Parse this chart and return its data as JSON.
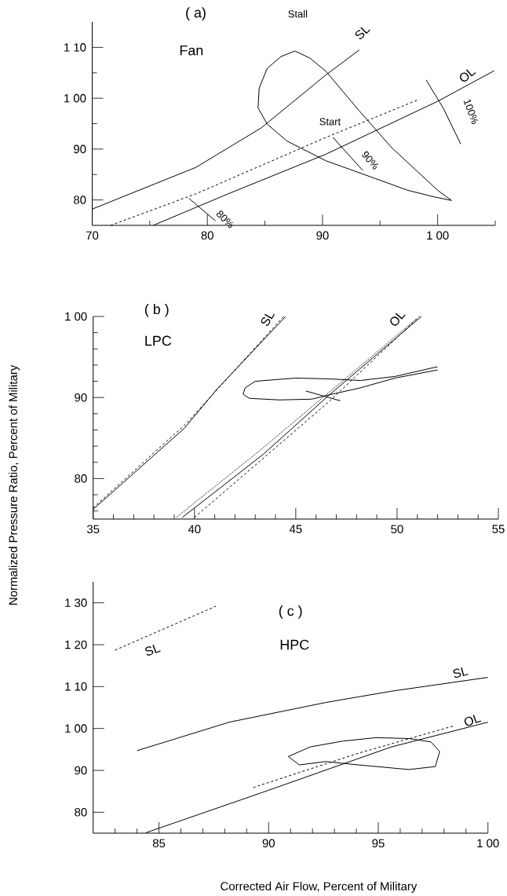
{
  "chart_data": [
    {
      "type": "line",
      "title": "( a)",
      "subtitle": "Fan",
      "xlim": [
        70,
        105
      ],
      "ylim": [
        75,
        115
      ],
      "xticks": [
        70,
        80,
        90,
        {
          "value": 100,
          "label": "1 00"
        },
        {
          "value": 75,
          "label": null
        },
        {
          "value": 85,
          "label": null
        },
        {
          "value": 95,
          "label": null
        },
        {
          "value": 105,
          "label": null
        }
      ],
      "yticks": [
        80,
        90,
        {
          "value": 100,
          "label": "1 00"
        },
        {
          "value": 110,
          "label": "1 10"
        },
        {
          "value": 85,
          "label": null
        },
        {
          "value": 95,
          "label": null
        },
        {
          "value": 105,
          "label": null
        }
      ],
      "series": [
        {
          "color": "#000000",
          "line_style": "solid",
          "x": [
            70,
            79,
            84.7,
            90.3,
            93.2
          ],
          "values": [
            78.2,
            86.4,
            94.2,
            104.6,
            109.5
          ]
        },
        {
          "color": "#000000",
          "line_style": "dashed",
          "x": [
            71.6,
            79,
            90.3,
            98.3
          ],
          "values": [
            75,
            81.2,
            92.3,
            99.7
          ]
        },
        {
          "color": "#000000",
          "line_style": "solid",
          "x": [
            75.3,
            81.8,
            90.3,
            100,
            104.9
          ],
          "values": [
            75,
            81.2,
            89.0,
            99.4,
            105.4
          ]
        },
        {
          "color": "#000000",
          "line_style": "solid",
          "x": [
            78.4,
            80.7
          ],
          "values": [
            80.3,
            75.9
          ]
        },
        {
          "color": "#000000",
          "line_style": "solid",
          "x": [
            90.9,
            93.5
          ],
          "values": [
            92.3,
            85.8
          ]
        },
        {
          "color": "#000000",
          "line_style": "solid",
          "x": [
            99,
            100.5,
            102
          ],
          "values": [
            103.6,
            98,
            91
          ]
        },
        {
          "color": "#000000",
          "line_style": "solid",
          "x": [
            84.4,
            84.5,
            85.2,
            86.4,
            87.6,
            88.9,
            90.3,
            93.2,
            96,
            100,
            101.2
          ],
          "values": [
            98.1,
            102,
            105.9,
            108.2,
            109.3,
            107.9,
            105.3,
            97.5,
            90.3,
            81.9,
            79.9
          ]
        },
        {
          "color": "#000000",
          "line_style": "solid",
          "x": [
            84.4,
            85.2,
            86.9,
            90.3,
            94.6,
            97.4,
            99.7,
            101.2
          ],
          "values": [
            98.1,
            94.9,
            91.6,
            87.7,
            84.2,
            81.9,
            80.6,
            79.9
          ]
        }
      ],
      "annotations": [
        "Stall",
        "Start",
        "SL",
        "OL",
        "80%",
        "90%",
        "100%"
      ]
    },
    {
      "type": "line",
      "title": "( b )",
      "subtitle": "LPC",
      "ylabel": "Normalized Pressure Ratio, Percent of Military",
      "xlim": [
        35,
        55
      ],
      "ylim": [
        75,
        100
      ],
      "xticks": [
        35,
        40,
        45,
        50,
        55,
        {
          "value": 36,
          "label": null
        },
        {
          "value": 37,
          "label": null
        },
        {
          "value": 38,
          "label": null
        },
        {
          "value": 39,
          "label": null
        },
        {
          "value": 41,
          "label": null
        },
        {
          "value": 42,
          "label": null
        },
        {
          "value": 43,
          "label": null
        },
        {
          "value": 44,
          "label": null
        },
        {
          "value": 46,
          "label": null
        },
        {
          "value": 47,
          "label": null
        },
        {
          "value": 48,
          "label": null
        },
        {
          "value": 49,
          "label": null
        },
        {
          "value": 51,
          "label": null
        },
        {
          "value": 52,
          "label": null
        },
        {
          "value": 53,
          "label": null
        },
        {
          "value": 54,
          "label": null
        }
      ],
      "yticks": [
        80,
        90,
        {
          "value": 100,
          "label": "1 00"
        },
        {
          "value": 76,
          "label": null
        },
        {
          "value": 78,
          "label": null
        },
        {
          "value": 82,
          "label": null
        },
        {
          "value": 84,
          "label": null
        },
        {
          "value": 86,
          "label": null
        },
        {
          "value": 88,
          "label": null
        },
        {
          "value": 92,
          "label": null
        },
        {
          "value": 94,
          "label": null
        },
        {
          "value": 96,
          "label": null
        },
        {
          "value": 98,
          "label": null
        }
      ],
      "series": [
        {
          "color": "#000000",
          "line_style": "solid",
          "x": [
            35,
            39.5,
            41.1,
            44.5
          ],
          "values": [
            76.2,
            86.2,
            91,
            100
          ]
        },
        {
          "color": "#000000",
          "line_style": "dashed",
          "x": [
            35,
            39.6,
            44.4
          ],
          "values": [
            76.4,
            86.8,
            100
          ]
        },
        {
          "color": "#000000",
          "line_style": "solid",
          "x": [
            39.4,
            43.4,
            46.6,
            51.2
          ],
          "values": [
            75.2,
            83,
            90.2,
            100
          ]
        },
        {
          "color": "#000000",
          "line_style": "dashed",
          "x": [
            40,
            46.6,
            51.1
          ],
          "values": [
            75.2,
            89.4,
            100
          ]
        },
        {
          "color": "#000000",
          "line_style": "dotted",
          "x": [
            39.1,
            43.2,
            51
          ],
          "values": [
            75.2,
            83.4,
            99.8
          ]
        },
        {
          "color": "#000000",
          "line_style": "solid",
          "x": [
            45.5,
            47.2
          ],
          "values": [
            90.8,
            89.6
          ]
        },
        {
          "color": "#000000",
          "line_style": "solid",
          "x": [
            42.4,
            42.5,
            43,
            45,
            46.6,
            48.2,
            49.9,
            52
          ],
          "values": [
            90.4,
            91.2,
            92,
            92.4,
            92.3,
            92.1,
            92.6,
            93.8
          ]
        },
        {
          "color": "#000000",
          "line_style": "solid",
          "x": [
            42.4,
            42.7,
            44.2,
            45.8,
            46.6,
            48.2,
            49.9,
            52
          ],
          "values": [
            90.4,
            89.9,
            89.7,
            89.8,
            90.3,
            91.2,
            92.4,
            93.4
          ]
        }
      ],
      "annotations": [
        "SL",
        "OL"
      ]
    },
    {
      "type": "line",
      "title": "( c )",
      "subtitle": "HPC",
      "xlabel": "Corrected Air Flow, Percent of Military",
      "xlim": [
        82,
        100
      ],
      "ylim": [
        75,
        135
      ],
      "xticks": [
        85,
        90,
        95,
        {
          "value": 100,
          "label": "1 00"
        },
        {
          "value": 83,
          "label": null
        },
        {
          "value": 84,
          "label": null
        },
        {
          "value": 86,
          "label": null
        },
        {
          "value": 87,
          "label": null
        },
        {
          "value": 88,
          "label": null
        },
        {
          "value": 89,
          "label": null
        },
        {
          "value": 91,
          "label": null
        },
        {
          "value": 92,
          "label": null
        },
        {
          "value": 93,
          "label": null
        },
        {
          "value": 94,
          "label": null
        },
        {
          "value": 96,
          "label": null
        },
        {
          "value": 97,
          "label": null
        },
        {
          "value": 98,
          "label": null
        },
        {
          "value": 99,
          "label": null
        }
      ],
      "yticks": [
        80,
        90,
        {
          "value": 100,
          "label": "1 00"
        },
        {
          "value": 110,
          "label": "1 10"
        },
        {
          "value": 120,
          "label": "1 20"
        },
        {
          "value": 130,
          "label": "1 30"
        }
      ],
      "series": [
        {
          "color": "#000000",
          "line_style": "dashed",
          "x": [
            83,
            87.6
          ],
          "values": [
            118.7,
            129.2
          ]
        },
        {
          "color": "#000000",
          "line_style": "solid",
          "x": [
            84,
            88.2,
            92.6,
            95.6,
            100
          ],
          "values": [
            94.7,
            101.5,
            106.2,
            108.9,
            112.2
          ]
        },
        {
          "color": "#000000",
          "line_style": "solid",
          "x": [
            84.4,
            89.7,
            95.6,
            100
          ],
          "values": [
            75.1,
            84.7,
            95.6,
            101.5
          ]
        },
        {
          "color": "#000000",
          "line_style": "dashed",
          "x": [
            89.3,
            94.1,
            98.5
          ],
          "values": [
            85.9,
            94.1,
            100.7
          ]
        },
        {
          "color": "#000000",
          "line_style": "solid",
          "x": [
            90.9,
            91.9,
            93.4,
            94.9,
            96.4,
            97.4,
            97.8
          ],
          "values": [
            93.3,
            95.6,
            97,
            97.8,
            97.6,
            96.8,
            94.5
          ]
        },
        {
          "color": "#000000",
          "line_style": "solid",
          "x": [
            90.9,
            91,
            91.4,
            92.6,
            94.1,
            96.4,
            97.6,
            97.8
          ],
          "values": [
            93.3,
            92.9,
            91.3,
            92.1,
            91.3,
            90.2,
            90.9,
            94.5
          ]
        }
      ],
      "annotations": [
        "SL",
        "SL",
        "OL"
      ]
    }
  ]
}
